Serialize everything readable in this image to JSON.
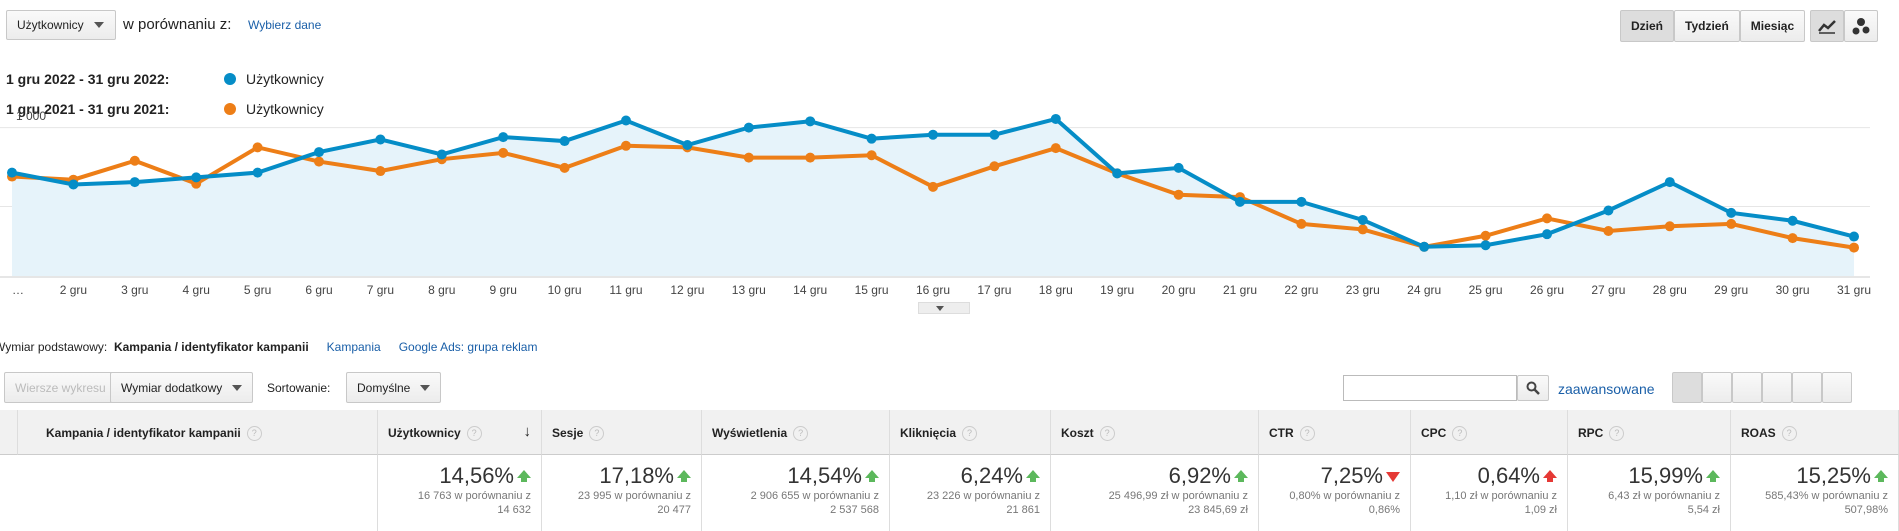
{
  "controls": {
    "metric_dropdown": "Użytkownicy",
    "compare_label": "w porównaniu z:",
    "select_data": "Wybierz dane",
    "periods": [
      "Dzień",
      "Tydzień",
      "Miesiąc"
    ]
  },
  "chart_data": {
    "type": "line",
    "categories": [
      "…",
      "2 gru",
      "3 gru",
      "4 gru",
      "5 gru",
      "6 gru",
      "7 gru",
      "8 gru",
      "9 gru",
      "10 gru",
      "11 gru",
      "12 gru",
      "13 gru",
      "14 gru",
      "15 gru",
      "16 gru",
      "17 gru",
      "18 gru",
      "19 gru",
      "20 gru",
      "21 gru",
      "22 gru",
      "23 gru",
      "24 gru",
      "25 gru",
      "26 gru",
      "27 gru",
      "28 gru",
      "29 gru",
      "30 gru",
      "31 gru"
    ],
    "series": [
      {
        "name": "Użytkownicy",
        "period": "1 gru 2022 - 31 gru 2022:",
        "color": "#058dc7",
        "area_color": "#e6f3fa",
        "values": [
          715,
          640,
          655,
          685,
          715,
          845,
          925,
          830,
          940,
          915,
          1045,
          890,
          1000,
          1040,
          930,
          955,
          955,
          1055,
          710,
          745,
          530,
          530,
          415,
          245,
          255,
          325,
          475,
          655,
          460,
          410,
          310
        ]
      },
      {
        "name": "Użytkownicy",
        "period": "1 gru 2021 - 31 gru 2021:",
        "color": "#ed7e17",
        "values": [
          690,
          670,
          790,
          645,
          875,
          785,
          725,
          800,
          840,
          745,
          885,
          875,
          810,
          810,
          825,
          625,
          755,
          870,
          710,
          575,
          560,
          390,
          355,
          245,
          315,
          425,
          345,
          375,
          390,
          300,
          240
        ]
      }
    ],
    "ylim": [
      60,
      1080
    ],
    "yticks": [
      {
        "value": 1000,
        "label": "1 000"
      },
      500
    ],
    "grid": true
  },
  "dimension_bar": {
    "label": "Wymiar podstawowy:",
    "options": [
      "Kampania / identyfikator kampanii",
      "Kampania",
      "Google Ads: grupa reklam"
    ]
  },
  "toolbar": {
    "plot_rows": "Wiersze wykresu",
    "secondary_dimension": "Wymiar dodatkowy",
    "sort_label": "Sortowanie:",
    "sort_value": "Domyślne",
    "advanced": "zaawansowane"
  },
  "table": {
    "headers": [
      "Kampania / identyfikator kampanii",
      "Użytkownicy",
      "Sesje",
      "Wyświetlenia",
      "Kliknięcia",
      "Koszt",
      "CTR",
      "CPC",
      "RPC",
      "ROAS"
    ],
    "totals": [
      {
        "change": "14,56%",
        "arrow": "up",
        "arrow_color": "#5cb85c",
        "compare": [
          "16 763 w porównaniu z",
          "14 632"
        ]
      },
      {
        "change": "17,18%",
        "arrow": "up",
        "arrow_color": "#5cb85c",
        "compare": [
          "23 995 w porównaniu z",
          "20 477"
        ]
      },
      {
        "change": "14,54%",
        "arrow": "up",
        "arrow_color": "#5cb85c",
        "compare": [
          "2 906 655 w porównaniu z",
          "2 537 568"
        ]
      },
      {
        "change": "6,24%",
        "arrow": "up",
        "arrow_color": "#5cb85c",
        "compare": [
          "23 226 w porównaniu z",
          "21 861"
        ]
      },
      {
        "change": "6,92%",
        "arrow": "up",
        "arrow_color": "#5cb85c",
        "compare": [
          "25 496,99 zł w porównaniu z",
          "23 845,69 zł"
        ]
      },
      {
        "change": "7,25%",
        "arrow": "down",
        "arrow_color": "#e53935",
        "compare": [
          "0,80% w porównaniu z",
          "0,86%"
        ]
      },
      {
        "change": "0,64%",
        "arrow": "up",
        "arrow_color": "#e53935",
        "compare": [
          "1,10 zł w porównaniu z",
          "1,09 zł"
        ]
      },
      {
        "change": "15,99%",
        "arrow": "up",
        "arrow_color": "#5cb85c",
        "compare": [
          "6,43 zł w porównaniu z",
          "5,54 zł"
        ]
      },
      {
        "change": "15,25%",
        "arrow": "up",
        "arrow_color": "#5cb85c",
        "compare": [
          "585,43% w porównaniu z",
          "507,98%"
        ]
      }
    ]
  }
}
